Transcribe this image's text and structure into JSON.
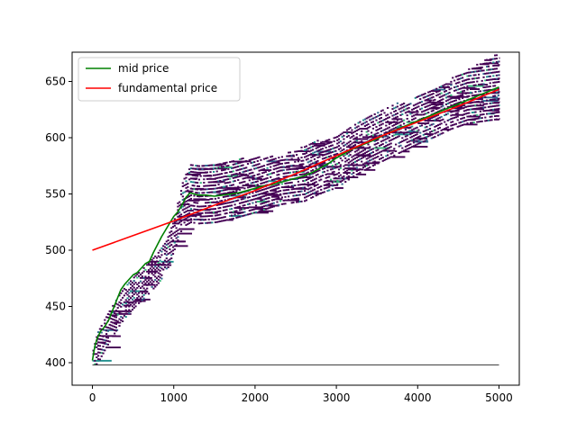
{
  "chart_data": {
    "type": "line",
    "title": "",
    "xlabel": "",
    "ylabel": "",
    "xlim": [
      -250,
      5250
    ],
    "ylim": [
      380,
      676
    ],
    "x_ticks": [
      {
        "value": 0,
        "label": "0"
      },
      {
        "value": 1000,
        "label": "1000"
      },
      {
        "value": 2000,
        "label": "2000"
      },
      {
        "value": 3000,
        "label": "3000"
      },
      {
        "value": 4000,
        "label": "4000"
      },
      {
        "value": 5000,
        "label": "5000"
      }
    ],
    "y_ticks": [
      {
        "value": 400,
        "label": "400"
      },
      {
        "value": 450,
        "label": "450"
      },
      {
        "value": 500,
        "label": "500"
      },
      {
        "value": 550,
        "label": "550"
      },
      {
        "value": 600,
        "label": "600"
      },
      {
        "value": 650,
        "label": "650"
      }
    ],
    "grid": false,
    "legend": {
      "placement": "top-left"
    },
    "series": [
      {
        "name": "mid price",
        "color": "#008000",
        "x": [
          0,
          30,
          60,
          100,
          150,
          200,
          250,
          300,
          350,
          400,
          450,
          500,
          550,
          600,
          650,
          700,
          750,
          800,
          850,
          900,
          950,
          1000,
          1050,
          1100,
          1150,
          1200,
          1250,
          1300,
          1400,
          1500,
          1600,
          1700,
          1800,
          1900,
          2000,
          2100,
          2200,
          2300,
          2400,
          2500,
          2600,
          2700,
          2800,
          2900,
          3000,
          3100,
          3200,
          3300,
          3400,
          3500,
          3600,
          3700,
          3800,
          3900,
          4000,
          4100,
          4200,
          4300,
          4400,
          4500,
          4600,
          4700,
          4800,
          4900,
          5000
        ],
        "y": [
          402,
          415,
          422,
          428,
          432,
          438,
          447,
          456,
          465,
          470,
          474,
          478,
          480,
          484,
          488,
          490,
          498,
          505,
          512,
          518,
          524,
          530,
          534,
          540,
          547,
          551,
          550,
          549,
          549,
          548,
          549,
          550,
          551,
          553,
          555,
          557,
          558,
          560,
          562,
          564,
          566,
          569,
          573,
          577,
          582,
          586,
          590,
          593,
          596,
          599,
          603,
          606,
          609,
          612,
          615,
          618,
          621,
          624,
          627,
          630,
          633,
          636,
          639,
          642,
          645
        ]
      },
      {
        "name": "fundamental price",
        "color": "#ff0000",
        "x": [
          0,
          500,
          1000,
          1500,
          2000,
          2500,
          3000,
          3500,
          4000,
          4500,
          5000
        ],
        "y": [
          500,
          513,
          526,
          540,
          553,
          568,
          584,
          600,
          614,
          628,
          643
        ]
      },
      {
        "name": "",
        "color": "#000000",
        "x": [
          0,
          5000
        ],
        "y": [
          398,
          398
        ]
      }
    ],
    "density_band": {
      "x": [
        0,
        50,
        100,
        200,
        300,
        400,
        500,
        600,
        700,
        800,
        900,
        1000,
        1100,
        1200,
        1300,
        1500,
        1700,
        2000,
        2300,
        2600,
        2800,
        3000,
        3200,
        3400,
        3600,
        3800,
        4000,
        4200,
        4400,
        4600,
        4800,
        5000
      ],
      "upper": [
        415,
        425,
        435,
        448,
        460,
        470,
        478,
        485,
        492,
        500,
        510,
        530,
        560,
        577,
        576,
        578,
        580,
        582,
        584,
        592,
        598,
        602,
        610,
        620,
        626,
        632,
        638,
        645,
        652,
        660,
        668,
        675
      ],
      "lower": [
        398,
        398,
        405,
        418,
        430,
        440,
        448,
        455,
        462,
        470,
        480,
        500,
        520,
        524,
        523,
        524,
        527,
        533,
        540,
        543,
        550,
        555,
        565,
        573,
        580,
        587,
        594,
        600,
        607,
        612,
        614,
        616
      ],
      "colors": [
        "#440154",
        "#31688e",
        "#21908d",
        "#35b779"
      ]
    }
  }
}
